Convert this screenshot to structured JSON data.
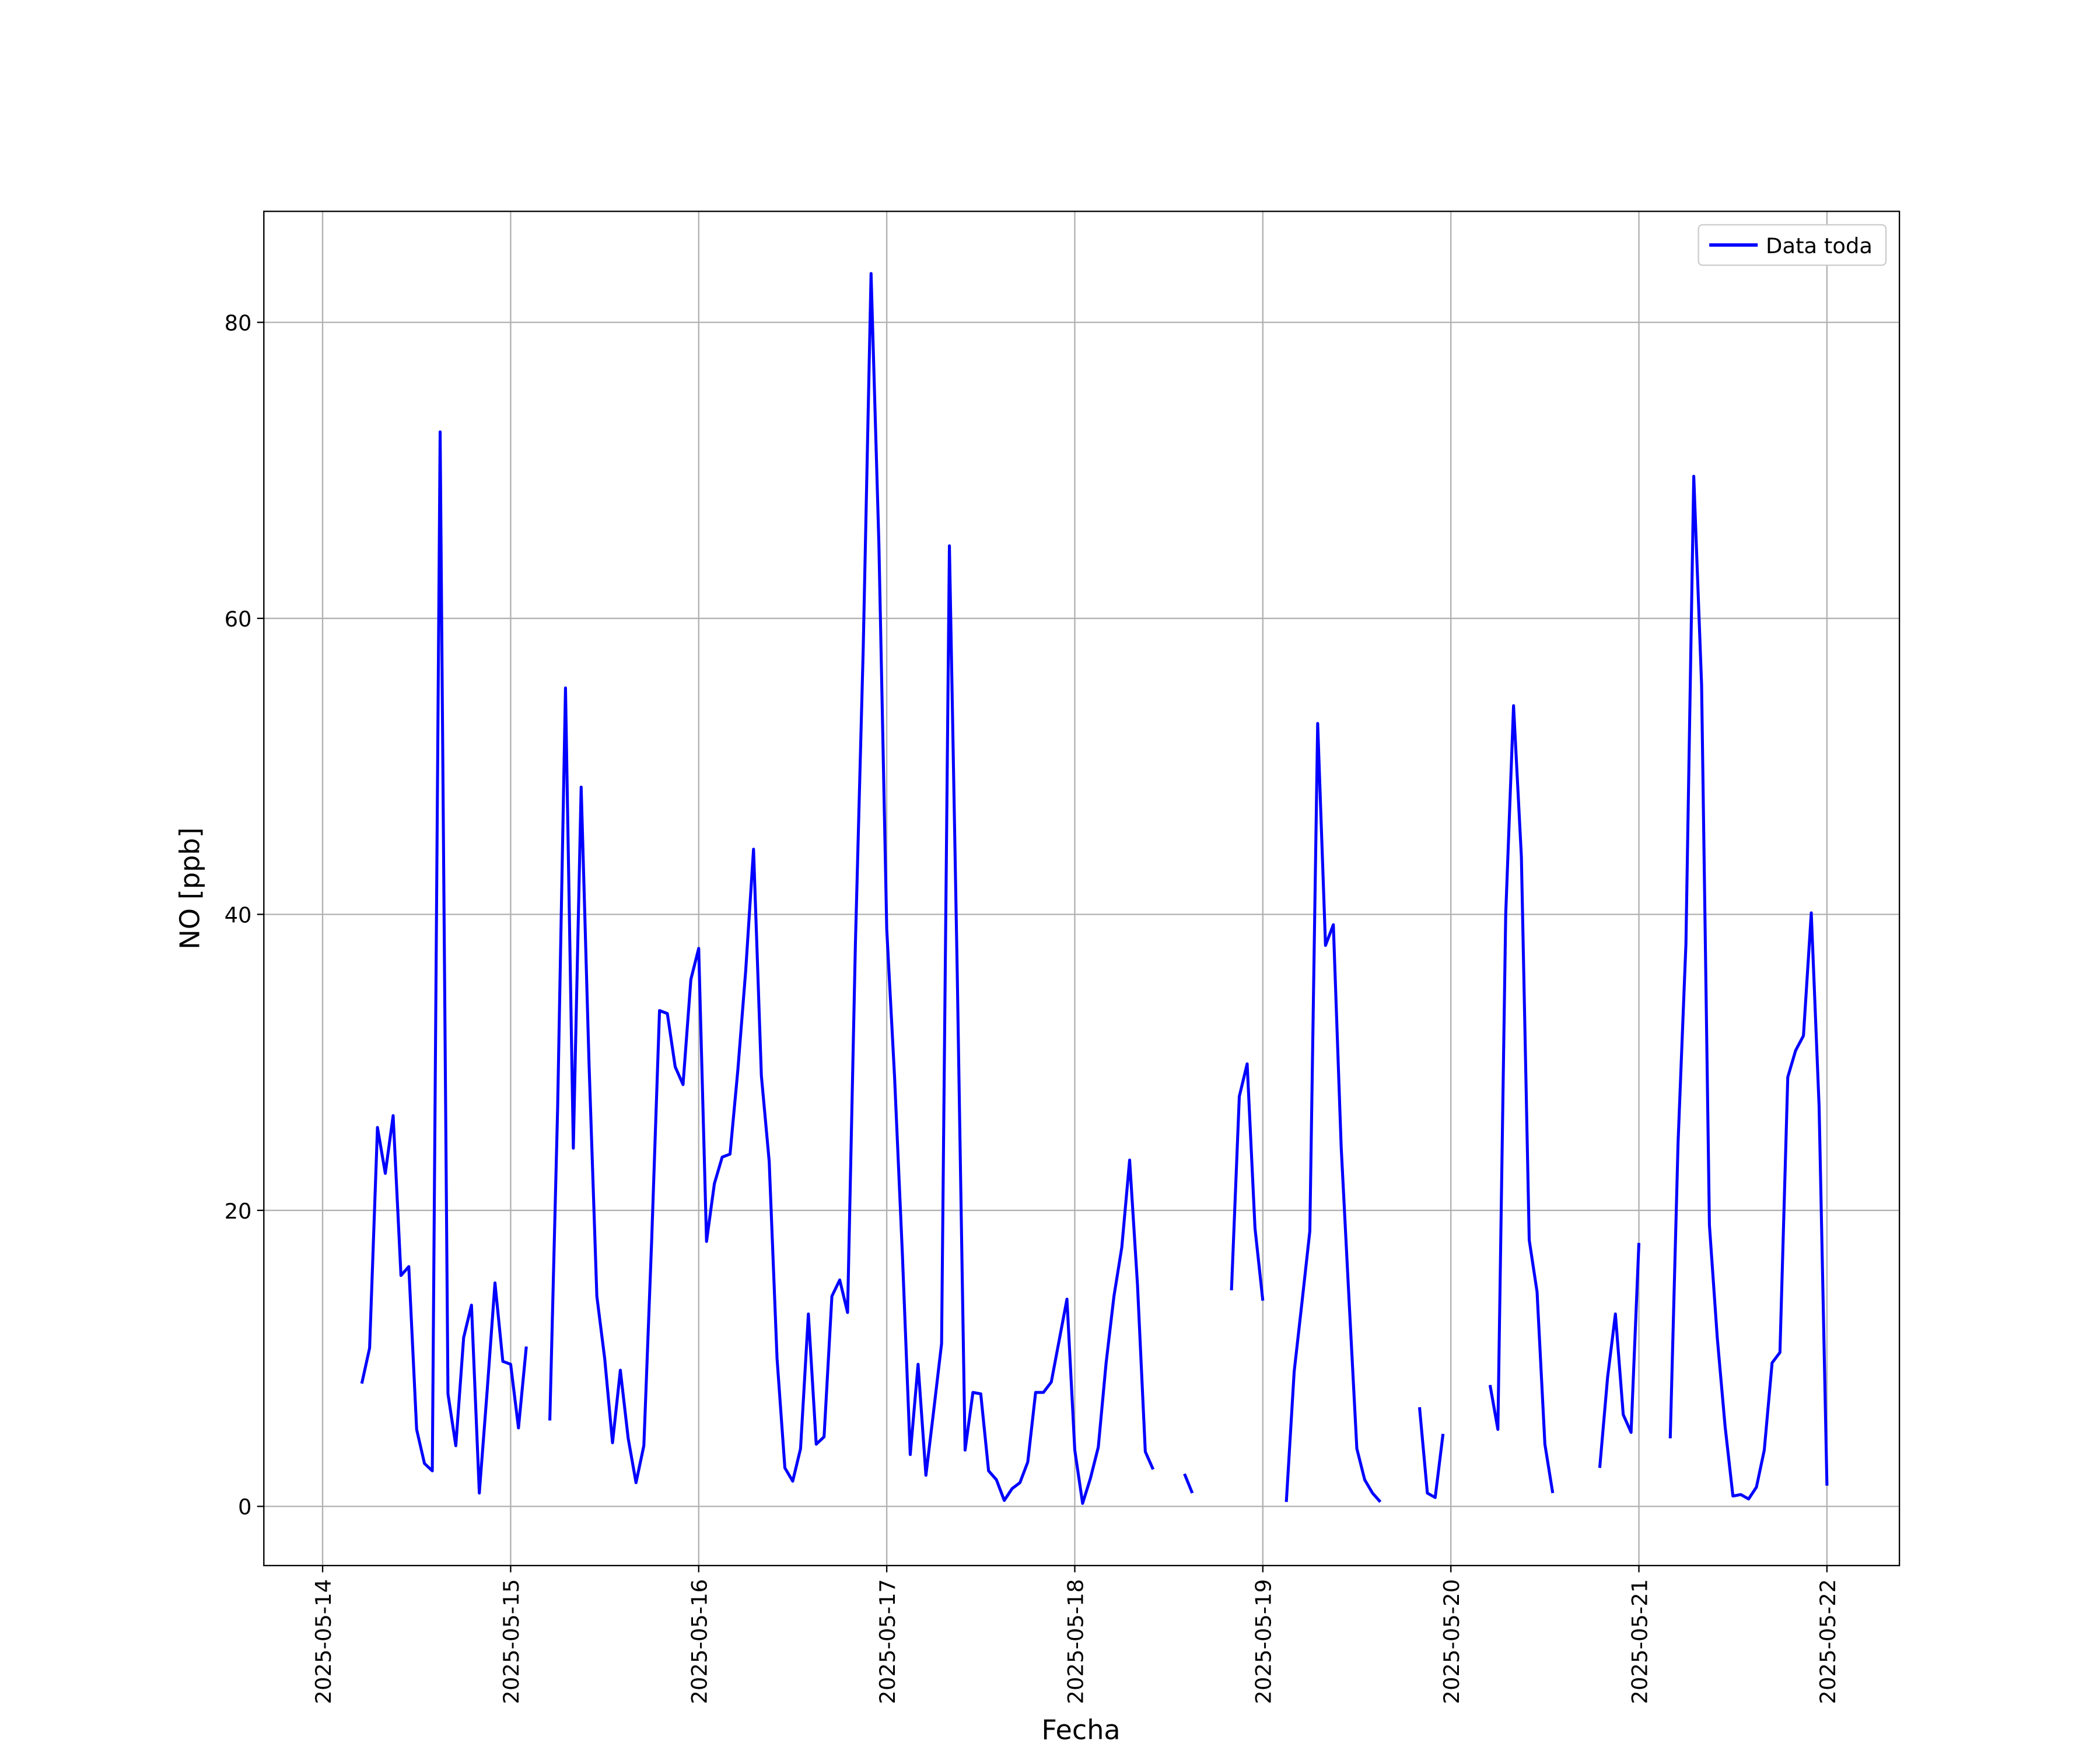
{
  "chart_data": {
    "type": "line",
    "xlabel": "Fecha",
    "ylabel": "NO [ppb]",
    "x": [
      "2025-05-14 05:00",
      "2025-05-14 06:00",
      "2025-05-14 07:00",
      "2025-05-14 08:00",
      "2025-05-14 09:00",
      "2025-05-14 10:00",
      "2025-05-14 11:00",
      "2025-05-14 12:00",
      "2025-05-14 13:00",
      "2025-05-14 14:00",
      "2025-05-14 15:00",
      "2025-05-14 16:00",
      "2025-05-14 17:00",
      "2025-05-14 18:00",
      "2025-05-14 19:00",
      "2025-05-14 20:00",
      "2025-05-14 21:00",
      "2025-05-14 22:00",
      "2025-05-14 23:00",
      "2025-05-15 00:00",
      "2025-05-15 01:00",
      "2025-05-15 02:00",
      "2025-05-15 03:00",
      "2025-05-15 05:00",
      "2025-05-15 06:00",
      "2025-05-15 07:00",
      "2025-05-15 08:00",
      "2025-05-15 09:00",
      "2025-05-15 10:00",
      "2025-05-15 11:00",
      "2025-05-15 12:00",
      "2025-05-15 13:00",
      "2025-05-15 14:00",
      "2025-05-15 15:00",
      "2025-05-15 16:00",
      "2025-05-15 17:00",
      "2025-05-15 18:00",
      "2025-05-15 19:00",
      "2025-05-15 20:00",
      "2025-05-15 21:00",
      "2025-05-15 22:00",
      "2025-05-15 23:00",
      "2025-05-16 00:00",
      "2025-05-16 01:00",
      "2025-05-16 02:00",
      "2025-05-16 03:00",
      "2025-05-16 04:00",
      "2025-05-16 05:00",
      "2025-05-16 06:00",
      "2025-05-16 07:00",
      "2025-05-16 08:00",
      "2025-05-16 09:00",
      "2025-05-16 10:00",
      "2025-05-16 11:00",
      "2025-05-16 12:00",
      "2025-05-16 13:00",
      "2025-05-16 14:00",
      "2025-05-16 15:00",
      "2025-05-16 16:00",
      "2025-05-16 17:00",
      "2025-05-16 18:00",
      "2025-05-16 19:00",
      "2025-05-16 20:00",
      "2025-05-16 21:00",
      "2025-05-16 22:00",
      "2025-05-16 23:00",
      "2025-05-17 00:00",
      "2025-05-17 01:00",
      "2025-05-17 02:00",
      "2025-05-17 03:00",
      "2025-05-17 04:00",
      "2025-05-17 05:00",
      "2025-05-17 06:00",
      "2025-05-17 07:00",
      "2025-05-17 08:00",
      "2025-05-17 09:00",
      "2025-05-17 10:00",
      "2025-05-17 11:00",
      "2025-05-17 12:00",
      "2025-05-17 13:00",
      "2025-05-17 14:00",
      "2025-05-17 15:00",
      "2025-05-17 16:00",
      "2025-05-17 17:00",
      "2025-05-17 18:00",
      "2025-05-17 19:00",
      "2025-05-17 20:00",
      "2025-05-17 21:00",
      "2025-05-17 22:00",
      "2025-05-17 23:00",
      "2025-05-18 00:00",
      "2025-05-18 01:00",
      "2025-05-18 02:00",
      "2025-05-18 03:00",
      "2025-05-18 04:00",
      "2025-05-18 05:00",
      "2025-05-18 06:00",
      "2025-05-18 07:00",
      "2025-05-18 08:00",
      "2025-05-18 09:00",
      "2025-05-18 10:00",
      "2025-05-18 11:00",
      "2025-05-18 14:00",
      "2025-05-18 15:00",
      "2025-05-18 16:00",
      "2025-05-18 20:00",
      "2025-05-18 21:00",
      "2025-05-18 22:00",
      "2025-05-18 23:00",
      "2025-05-19 00:00",
      "2025-05-19 01:00",
      "2025-05-19 03:00",
      "2025-05-19 04:00",
      "2025-05-19 05:00",
      "2025-05-19 06:00",
      "2025-05-19 07:00",
      "2025-05-19 08:00",
      "2025-05-19 09:00",
      "2025-05-19 10:00",
      "2025-05-19 11:00",
      "2025-05-19 12:00",
      "2025-05-19 13:00",
      "2025-05-19 14:00",
      "2025-05-19 15:00",
      "2025-05-19 16:00",
      "2025-05-19 20:00",
      "2025-05-19 21:00",
      "2025-05-19 22:00",
      "2025-05-19 23:00",
      "2025-05-20 00:00",
      "2025-05-20 05:00",
      "2025-05-20 06:00",
      "2025-05-20 07:00",
      "2025-05-20 08:00",
      "2025-05-20 09:00",
      "2025-05-20 10:00",
      "2025-05-20 11:00",
      "2025-05-20 12:00",
      "2025-05-20 13:00",
      "2025-05-20 14:00",
      "2025-05-20 19:00",
      "2025-05-20 20:00",
      "2025-05-20 21:00",
      "2025-05-20 22:00",
      "2025-05-20 23:00",
      "2025-05-21 00:00",
      "2025-05-21 01:00",
      "2025-05-21 04:00",
      "2025-05-21 05:00",
      "2025-05-21 06:00",
      "2025-05-21 07:00",
      "2025-05-21 08:00",
      "2025-05-21 09:00",
      "2025-05-21 10:00",
      "2025-05-21 11:00",
      "2025-05-21 12:00",
      "2025-05-21 13:00",
      "2025-05-21 14:00",
      "2025-05-21 15:00",
      "2025-05-21 16:00",
      "2025-05-21 17:00",
      "2025-05-21 18:00",
      "2025-05-21 19:00",
      "2025-05-21 20:00",
      "2025-05-21 21:00",
      "2025-05-21 22:00",
      "2025-05-21 23:00",
      "2025-05-22 00:00"
    ],
    "series": [
      {
        "name": "Data toda",
        "color": "#0000ff",
        "values": [
          8.3,
          10.7,
          25.6,
          22.5,
          26.4,
          15.6,
          16.2,
          5.2,
          2.9,
          2.4,
          72.6,
          7.6,
          4.1,
          11.4,
          13.6,
          0.9,
          7.8,
          15.1,
          9.8,
          9.6,
          5.3,
          10.8,
          null,
          5.8,
          27,
          55.3,
          24.2,
          48.6,
          30,
          14.2,
          10,
          4.3,
          9.2,
          4.6,
          1.6,
          4.1,
          18,
          33.5,
          33.3,
          29.7,
          28.5,
          35.6,
          37.7,
          17.9,
          21.8,
          23.6,
          23.8,
          29.5,
          36.2,
          44.4,
          29.1,
          23.3,
          10,
          2.6,
          1.7,
          3.9,
          13,
          4.2,
          4.7,
          14.2,
          15.3,
          13.1,
          38,
          58,
          83.3,
          65,
          39,
          29,
          17,
          3.5,
          9.6,
          2.1,
          6.5,
          11,
          64.9,
          36,
          3.8,
          7.7,
          7.6,
          2.4,
          1.8,
          0.4,
          1.2,
          1.6,
          3,
          7.7,
          7.7,
          8.4,
          11.2,
          14,
          3.8,
          0.2,
          1.9,
          4,
          9.7,
          14.2,
          17.5,
          23.4,
          15,
          3.7,
          2.5,
          null,
          2.2,
          0.9,
          null,
          14.6,
          27.7,
          29.9,
          18.8,
          13.9,
          null,
          0.3,
          9.1,
          13.8,
          18.6,
          52.9,
          37.9,
          39.3,
          24.3,
          14,
          3.9,
          1.8,
          0.9,
          0.3,
          null,
          6.7,
          0.9,
          0.6,
          4.9,
          null,
          8.2,
          5.2,
          40,
          54.1,
          43.9,
          18,
          14.5,
          4.2,
          0.9,
          null,
          2.6,
          8.7,
          13,
          6.2,
          5,
          17.8,
          null,
          4.6,
          24.6,
          38,
          69.6,
          55.5,
          19,
          11.4,
          5.4,
          0.7,
          0.8,
          0.5,
          1.3,
          3.8,
          9.7,
          10.4,
          29,
          30.8,
          31.8,
          40.1,
          27,
          1.4
        ]
      }
    ],
    "xlim": [
      "2025-05-13 16:30",
      "2025-05-22 09:15"
    ],
    "xticks": [
      "2025-05-14",
      "2025-05-15",
      "2025-05-16",
      "2025-05-17",
      "2025-05-18",
      "2025-05-19",
      "2025-05-20",
      "2025-05-21",
      "2025-05-22"
    ],
    "ylim": [
      -4,
      87.5
    ],
    "yticks": [
      0,
      20,
      40,
      60,
      80
    ],
    "grid": true,
    "legend": "upper right"
  }
}
